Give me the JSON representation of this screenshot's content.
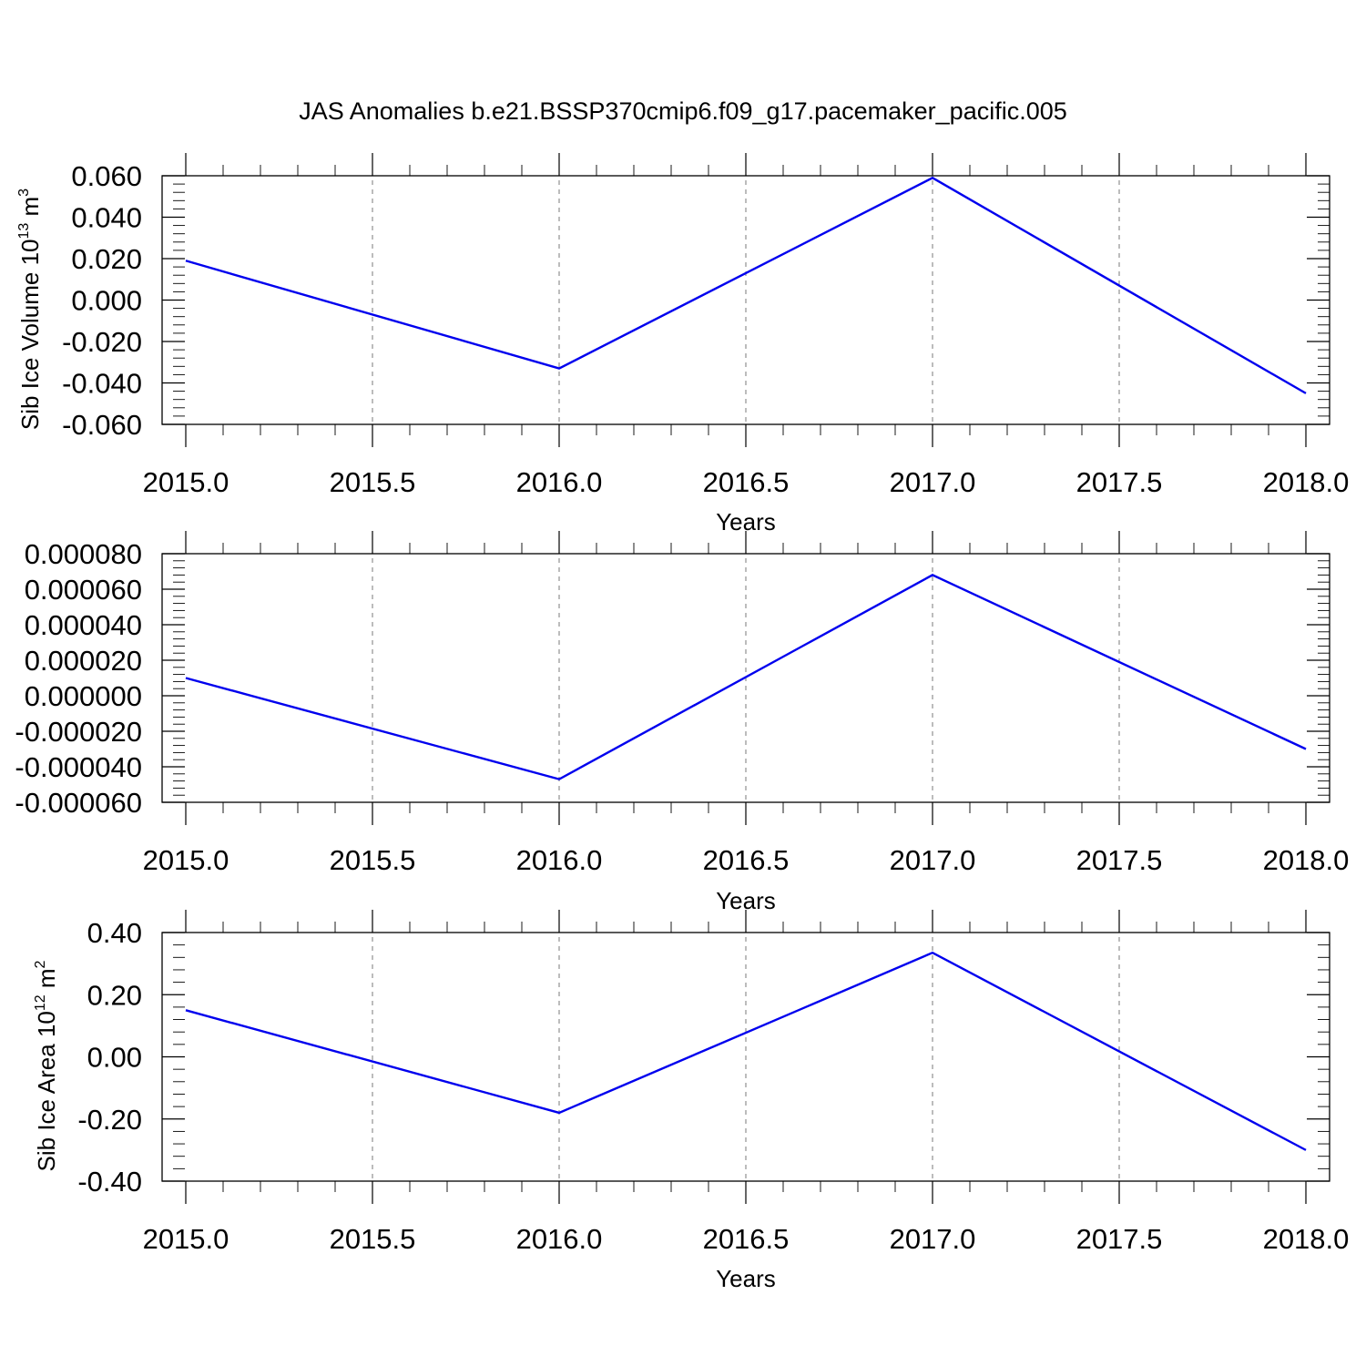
{
  "title": "JAS Anomalies b.e21.BSSP370cmip6.f09_g17.pacemaker_pacific.005",
  "colors": {
    "series": "#0000ee",
    "grid": "#7a7a7a",
    "axis": "#000000"
  },
  "chart_data": [
    {
      "type": "line",
      "ylabel": "Sib Ice Volume 10^13 m^3",
      "ylabel_main": "Sib Ice Volume 10",
      "ylabel_exp": "13",
      "ylabel_unit": " m",
      "ylabel_unit_exp": "3",
      "xlabel": "Years",
      "x": [
        2015,
        2016,
        2017,
        2018
      ],
      "y": [
        0.019,
        -0.033,
        0.059,
        -0.045
      ],
      "xlim": [
        2015,
        2018
      ],
      "ylim": [
        -0.06,
        0.06
      ],
      "xticks": [
        "2015.0",
        "2015.5",
        "2016.0",
        "2016.5",
        "2017.0",
        "2017.5",
        "2018.0"
      ],
      "yticks": [
        "-0.060",
        "-0.040",
        "-0.020",
        "0.000",
        "0.020",
        "0.040",
        "0.060"
      ],
      "grid": "vertical dashed"
    },
    {
      "type": "line",
      "ylabel": "",
      "xlabel": "Years",
      "x": [
        2015,
        2016,
        2017,
        2018
      ],
      "y": [
        1e-05,
        -4.7e-05,
        6.8e-05,
        -3e-05
      ],
      "xlim": [
        2015,
        2018
      ],
      "ylim": [
        -6e-05,
        8e-05
      ],
      "xticks": [
        "2015.0",
        "2015.5",
        "2016.0",
        "2016.5",
        "2017.0",
        "2017.5",
        "2018.0"
      ],
      "yticks": [
        "-0.000060",
        "-0.000040",
        "-0.000020",
        "0.000000",
        "0.000020",
        "0.000040",
        "0.000060",
        "0.000080"
      ],
      "grid": "vertical dashed"
    },
    {
      "type": "line",
      "ylabel": "Sib Ice Area 10^12 m^2",
      "ylabel_main": "Sib Ice Area 10",
      "ylabel_exp": "12",
      "ylabel_unit": " m",
      "ylabel_unit_exp": "2",
      "xlabel": "Years",
      "x": [
        2015,
        2016,
        2017,
        2018
      ],
      "y": [
        0.15,
        -0.18,
        0.335,
        -0.3
      ],
      "xlim": [
        2015,
        2018
      ],
      "ylim": [
        -0.4,
        0.4
      ],
      "xticks": [
        "2015.0",
        "2015.5",
        "2016.0",
        "2016.5",
        "2017.0",
        "2017.5",
        "2018.0"
      ],
      "yticks": [
        "-0.40",
        "-0.20",
        "0.00",
        "0.20",
        "0.40"
      ],
      "grid": "vertical dashed"
    }
  ]
}
